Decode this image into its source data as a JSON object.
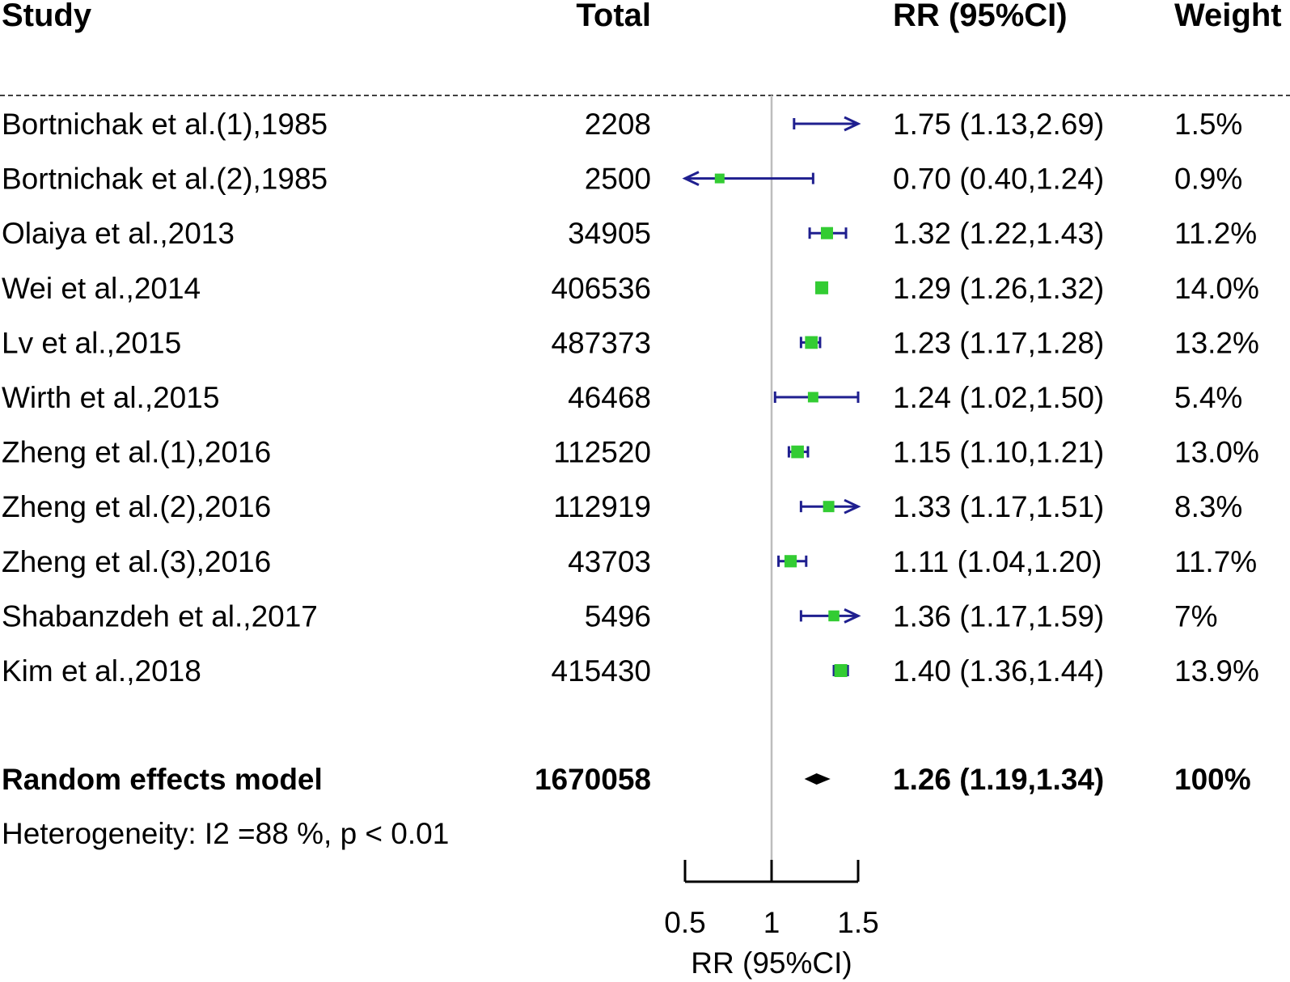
{
  "headers": {
    "study": "Study",
    "total": "Total",
    "ratio": "RR (95%CI)",
    "weight": "Weight"
  },
  "colors": {
    "ci_line": "#1f1f8f",
    "point": "#33cc33",
    "reference_line": "#bdbdbd",
    "diamond": "#000000"
  },
  "chart_data": {
    "type": "forest",
    "measure": "RR",
    "reference_value": 1,
    "xlim": [
      0.5,
      1.5
    ],
    "x_ticks": [
      "0.5",
      "1",
      "1.5"
    ],
    "xlabel": "RR (95%CI)",
    "studies": [
      {
        "study": "Bortnichak et al.(1),1985",
        "total": "2208",
        "rr": 1.75,
        "lower": 1.13,
        "upper": 2.69,
        "ci_text": "1.75 (1.13,2.69)",
        "weight": "1.5%"
      },
      {
        "study": "Bortnichak et al.(2),1985",
        "total": "2500",
        "rr": 0.7,
        "lower": 0.4,
        "upper": 1.24,
        "ci_text": "0.70 (0.40,1.24)",
        "weight": "0.9%"
      },
      {
        "study": "Olaiya et al.,2013",
        "total": "34905",
        "rr": 1.32,
        "lower": 1.22,
        "upper": 1.43,
        "ci_text": "1.32 (1.22,1.43)",
        "weight": "11.2%"
      },
      {
        "study": "Wei et al.,2014",
        "total": "406536",
        "rr": 1.29,
        "lower": 1.26,
        "upper": 1.32,
        "ci_text": "1.29 (1.26,1.32)",
        "weight": "14.0%"
      },
      {
        "study": "Lv et al.,2015",
        "total": "487373",
        "rr": 1.23,
        "lower": 1.17,
        "upper": 1.28,
        "ci_text": "1.23 (1.17,1.28)",
        "weight": "13.2%"
      },
      {
        "study": "Wirth et al.,2015",
        "total": "46468",
        "rr": 1.24,
        "lower": 1.02,
        "upper": 1.5,
        "ci_text": "1.24 (1.02,1.50)",
        "weight": "5.4%"
      },
      {
        "study": "Zheng et al.(1),2016",
        "total": "112520",
        "rr": 1.15,
        "lower": 1.1,
        "upper": 1.21,
        "ci_text": "1.15 (1.10,1.21)",
        "weight": "13.0%"
      },
      {
        "study": "Zheng et al.(2),2016",
        "total": "112919",
        "rr": 1.33,
        "lower": 1.17,
        "upper": 1.51,
        "ci_text": "1.33 (1.17,1.51)",
        "weight": "8.3%"
      },
      {
        "study": "Zheng et al.(3),2016",
        "total": "43703",
        "rr": 1.11,
        "lower": 1.04,
        "upper": 1.2,
        "ci_text": "1.11 (1.04,1.20)",
        "weight": "11.7%"
      },
      {
        "study": "Shabanzdeh et al.,2017",
        "total": "5496",
        "rr": 1.36,
        "lower": 1.17,
        "upper": 1.59,
        "ci_text": "1.36 (1.17,1.59)",
        "weight": "7%"
      },
      {
        "study": "Kim et al.,2018",
        "total": "415430",
        "rr": 1.4,
        "lower": 1.36,
        "upper": 1.44,
        "ci_text": "1.40 (1.36,1.44)",
        "weight": "13.9%"
      }
    ],
    "summary": {
      "label": "Random effects model",
      "total": "1670058",
      "rr": 1.26,
      "lower": 1.19,
      "upper": 1.34,
      "ci_text": "1.26 (1.19,1.34)",
      "weight": "100%"
    },
    "heterogeneity": "Heterogeneity:  I2 =88 %, p < 0.01"
  }
}
